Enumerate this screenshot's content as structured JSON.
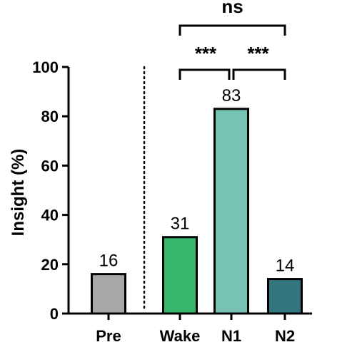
{
  "chart_data": {
    "type": "bar",
    "categories": [
      "Pre",
      "Wake",
      "N1",
      "N2"
    ],
    "values": [
      16,
      31,
      83,
      14
    ],
    "data_labels": [
      "16",
      "31",
      "83",
      "14"
    ],
    "colors": [
      "#a7a7aa",
      "#38b56d",
      "#76c2b3",
      "#34767f"
    ],
    "ylabel": "Insight (%)",
    "ylim": [
      0,
      100
    ],
    "yticks": [
      0,
      20,
      40,
      60,
      80,
      100
    ],
    "grid": false,
    "separator_after": "Pre",
    "significance": [
      {
        "from": "Wake",
        "to": "N1",
        "label": "***"
      },
      {
        "from": "N1",
        "to": "N2",
        "label": "***"
      },
      {
        "from": "Wake",
        "to": "N2",
        "label": "ns"
      }
    ]
  }
}
